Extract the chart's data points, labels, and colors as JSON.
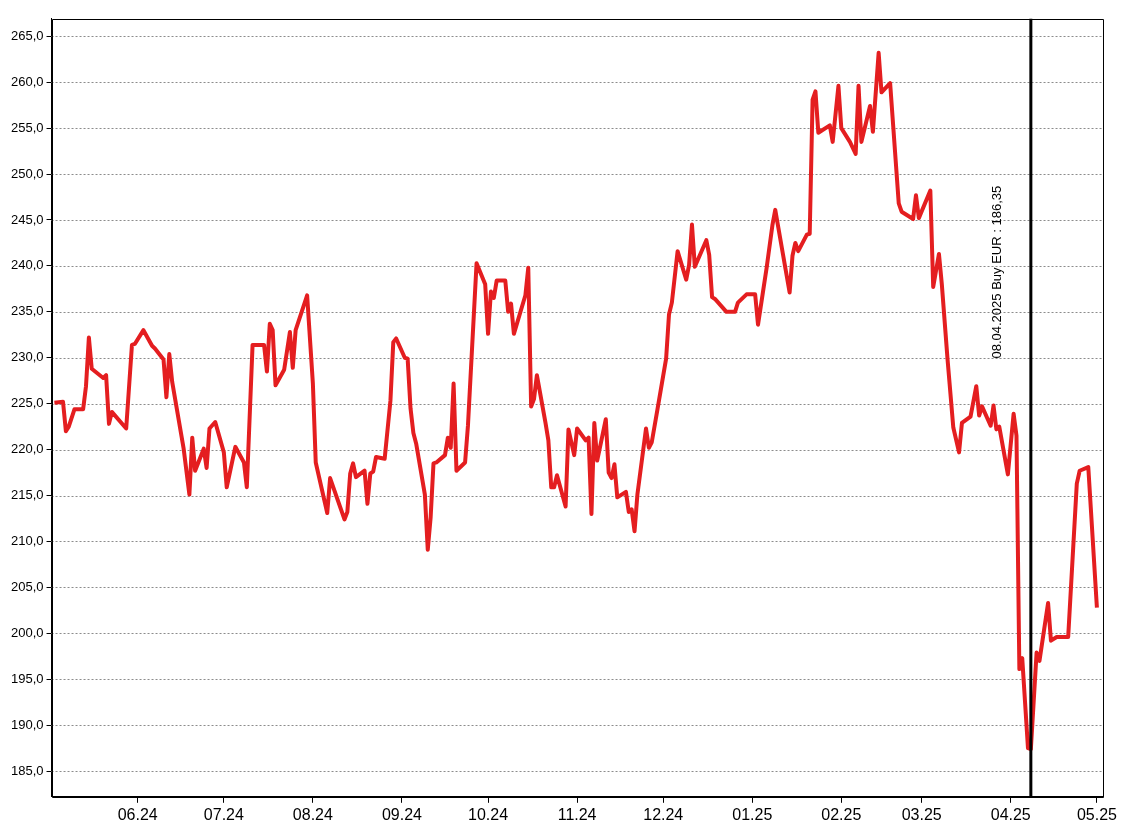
{
  "chart_data": {
    "type": "line",
    "x": [
      "2024-05-03",
      "2024-05-06",
      "2024-05-07",
      "2024-05-08",
      "2024-05-10",
      "2024-05-13",
      "2024-05-14",
      "2024-05-15",
      "2024-05-16",
      "2024-05-20",
      "2024-05-21",
      "2024-05-22",
      "2024-05-23",
      "2024-05-28",
      "2024-05-30",
      "2024-05-31",
      "2024-06-03",
      "2024-06-06",
      "2024-06-07",
      "2024-06-10",
      "2024-06-11",
      "2024-06-12",
      "2024-06-13",
      "2024-06-17",
      "2024-06-19",
      "2024-06-20",
      "2024-06-21",
      "2024-06-24",
      "2024-06-25",
      "2024-06-26",
      "2024-06-28",
      "2024-07-01",
      "2024-07-02",
      "2024-07-05",
      "2024-07-08",
      "2024-07-09",
      "2024-07-11",
      "2024-07-15",
      "2024-07-16",
      "2024-07-17",
      "2024-07-18",
      "2024-07-19",
      "2024-07-22",
      "2024-07-24",
      "2024-07-25",
      "2024-07-26",
      "2024-07-30",
      "2024-08-01",
      "2024-08-02",
      "2024-08-06",
      "2024-08-07",
      "2024-08-12",
      "2024-08-13",
      "2024-08-14",
      "2024-08-15",
      "2024-08-16",
      "2024-08-19",
      "2024-08-20",
      "2024-08-21",
      "2024-08-22",
      "2024-08-23",
      "2024-08-26",
      "2024-08-28",
      "2024-08-29",
      "2024-08-30",
      "2024-09-02",
      "2024-09-03",
      "2024-09-04",
      "2024-09-05",
      "2024-09-06",
      "2024-09-09",
      "2024-09-10",
      "2024-09-11",
      "2024-09-12",
      "2024-09-13",
      "2024-09-16",
      "2024-09-17",
      "2024-09-18",
      "2024-09-19",
      "2024-09-20",
      "2024-09-23",
      "2024-09-24",
      "2024-09-27",
      "2024-09-30",
      "2024-10-01",
      "2024-10-02",
      "2024-10-03",
      "2024-10-04",
      "2024-10-07",
      "2024-10-08",
      "2024-10-09",
      "2024-10-10",
      "2024-10-14",
      "2024-10-15",
      "2024-10-16",
      "2024-10-17",
      "2024-10-18",
      "2024-10-21",
      "2024-10-22",
      "2024-10-23",
      "2024-10-24",
      "2024-10-25",
      "2024-10-28",
      "2024-10-29",
      "2024-10-31",
      "2024-11-01",
      "2024-11-04",
      "2024-11-05",
      "2024-11-06",
      "2024-11-07",
      "2024-11-08",
      "2024-11-11",
      "2024-11-12",
      "2024-11-13",
      "2024-11-14",
      "2024-11-15",
      "2024-11-18",
      "2024-11-19",
      "2024-11-20",
      "2024-11-21",
      "2024-11-22",
      "2024-11-25",
      "2024-11-26",
      "2024-11-27",
      "2024-11-29",
      "2024-12-02",
      "2024-12-03",
      "2024-12-04",
      "2024-12-06",
      "2024-12-09",
      "2024-12-10",
      "2024-12-11",
      "2024-12-12",
      "2024-12-16",
      "2024-12-17",
      "2024-12-18",
      "2024-12-19",
      "2024-12-23",
      "2024-12-26",
      "2024-12-27",
      "2024-12-30",
      "2025-01-02",
      "2025-01-03",
      "2025-01-06",
      "2025-01-08",
      "2025-01-09",
      "2025-01-14",
      "2025-01-15",
      "2025-01-16",
      "2025-01-17",
      "2025-01-20",
      "2025-01-21",
      "2025-01-22",
      "2025-01-23",
      "2025-01-24",
      "2025-01-28",
      "2025-01-29",
      "2025-01-31",
      "2025-02-01",
      "2025-02-04",
      "2025-02-06",
      "2025-02-07",
      "2025-02-08",
      "2025-02-11",
      "2025-02-12",
      "2025-02-14",
      "2025-02-15",
      "2025-02-18",
      "2025-02-21",
      "2025-02-22",
      "2025-02-26",
      "2025-02-27",
      "2025-02-28",
      "2025-03-04",
      "2025-03-05",
      "2025-03-07",
      "2025-03-08",
      "2025-03-10",
      "2025-03-12",
      "2025-03-14",
      "2025-03-15",
      "2025-03-18",
      "2025-03-20",
      "2025-03-21",
      "2025-03-22",
      "2025-03-25",
      "2025-03-26",
      "2025-03-27",
      "2025-03-28",
      "2025-03-31",
      "2025-04-02",
      "2025-04-03",
      "2025-04-04",
      "2025-04-05",
      "2025-04-07",
      "2025-04-08",
      "2025-04-10",
      "2025-04-11",
      "2025-04-14",
      "2025-04-15",
      "2025-04-17",
      "2025-04-21",
      "2025-04-24",
      "2025-04-25",
      "2025-04-28",
      "2025-05-01"
    ],
    "series": [
      {
        "color": "#e41e20",
        "values": [
          225.1,
          225.2,
          222.0,
          222.5,
          224.4,
          224.4,
          226.9,
          232.2,
          228.8,
          227.8,
          228.1,
          222.8,
          224.1,
          222.3,
          231.4,
          231.5,
          233.0,
          231.3,
          231.0,
          229.8,
          225.7,
          230.4,
          227.4,
          220.1,
          215.1,
          221.3,
          217.7,
          220.1,
          218.0,
          222.3,
          223.0,
          219.7,
          215.9,
          220.3,
          218.6,
          215.9,
          231.4,
          231.4,
          228.5,
          233.7,
          233.0,
          227.0,
          228.7,
          232.8,
          228.9,
          233.0,
          236.8,
          227.2,
          218.6,
          213.1,
          216.9,
          212.4,
          213.2,
          217.4,
          218.5,
          217.0,
          217.7,
          214.1,
          217.4,
          217.6,
          219.2,
          219.0,
          225.3,
          231.7,
          232.1,
          230.0,
          229.9,
          224.5,
          221.8,
          220.6,
          215.1,
          209.1,
          212.6,
          218.5,
          218.6,
          219.4,
          221.3,
          220.2,
          227.2,
          217.7,
          218.6,
          222.6,
          240.3,
          238.0,
          232.6,
          237.2,
          236.5,
          238.4,
          238.4,
          235.0,
          235.9,
          232.6,
          236.8,
          239.8,
          224.7,
          225.5,
          228.1,
          222.9,
          221.0,
          215.9,
          215.9,
          217.2,
          213.8,
          222.2,
          219.4,
          222.3,
          221.0,
          221.3,
          213.0,
          222.9,
          218.8,
          223.3,
          217.5,
          216.9,
          218.4,
          214.8,
          215.4,
          213.2,
          213.5,
          211.1,
          215.1,
          222.3,
          220.2,
          220.8,
          224.4,
          229.9,
          234.7,
          236.0,
          241.6,
          238.5,
          240.1,
          244.5,
          239.9,
          242.8,
          241.2,
          236.6,
          236.4,
          235.0,
          235.0,
          236.0,
          236.9,
          236.9,
          233.6,
          239.8,
          244.4,
          246.1,
          237.1,
          241.1,
          242.5,
          241.6,
          243.4,
          243.5,
          258.1,
          259.0,
          254.5,
          255.3,
          253.5,
          259.6,
          255.0,
          253.5,
          252.2,
          259.6,
          253.5,
          257.4,
          254.6,
          263.2,
          258.9,
          259.9,
          246.8,
          245.9,
          245.1,
          247.7,
          245.2,
          248.2,
          237.7,
          241.3,
          238.0,
          229.8,
          222.4,
          219.7,
          222.9,
          223.6,
          226.9,
          223.7,
          224.7,
          222.6,
          224.8,
          222.2,
          222.5,
          217.3,
          223.9,
          221.5,
          196.1,
          197.3,
          187.5,
          187.4,
          197.9,
          197.0,
          203.3,
          199.2,
          199.6,
          199.6,
          216.3,
          217.7,
          218.1,
          202.8
        ]
      }
    ],
    "xlim": [
      "2024-05-02",
      "2025-05-03"
    ],
    "xticks": [
      {
        "value": "2024-06-01",
        "label": "06.24"
      },
      {
        "value": "2024-07-01",
        "label": "07.24"
      },
      {
        "value": "2024-08-01",
        "label": "08.24"
      },
      {
        "value": "2024-09-01",
        "label": "09.24"
      },
      {
        "value": "2024-10-01",
        "label": "10.24"
      },
      {
        "value": "2024-11-01",
        "label": "11.24"
      },
      {
        "value": "2024-12-01",
        "label": "12.24"
      },
      {
        "value": "2025-01-01",
        "label": "01.25"
      },
      {
        "value": "2025-02-01",
        "label": "02.25"
      },
      {
        "value": "2025-03-01",
        "label": "03.25"
      },
      {
        "value": "2025-04-01",
        "label": "04.25"
      },
      {
        "value": "2025-05-01",
        "label": "05.25"
      }
    ],
    "ylim": [
      182.2,
      266.9
    ],
    "yticks": [
      {
        "value": 185,
        "label": "185,0"
      },
      {
        "value": 190,
        "label": "190,0"
      },
      {
        "value": 195,
        "label": "195,0"
      },
      {
        "value": 200,
        "label": "200,0"
      },
      {
        "value": 205,
        "label": "205,0"
      },
      {
        "value": 210,
        "label": "210,0"
      },
      {
        "value": 215,
        "label": "215,0"
      },
      {
        "value": 220,
        "label": "220,0"
      },
      {
        "value": 225,
        "label": "225,0"
      },
      {
        "value": 230,
        "label": "230,0"
      },
      {
        "value": 235,
        "label": "235,0"
      },
      {
        "value": 240,
        "label": "240,0"
      },
      {
        "value": 245,
        "label": "245,0"
      },
      {
        "value": 250,
        "label": "250,0"
      },
      {
        "value": 255,
        "label": "255,0"
      },
      {
        "value": 260,
        "label": "260,0"
      },
      {
        "value": 265,
        "label": "265,0"
      }
    ],
    "ref_lines": [
      {
        "axis": "x",
        "value": "2025-04-08",
        "label": "08.04.2025 Buy EUR : 186,35",
        "color": "#000000"
      }
    ],
    "grid": "y",
    "legend": false
  }
}
